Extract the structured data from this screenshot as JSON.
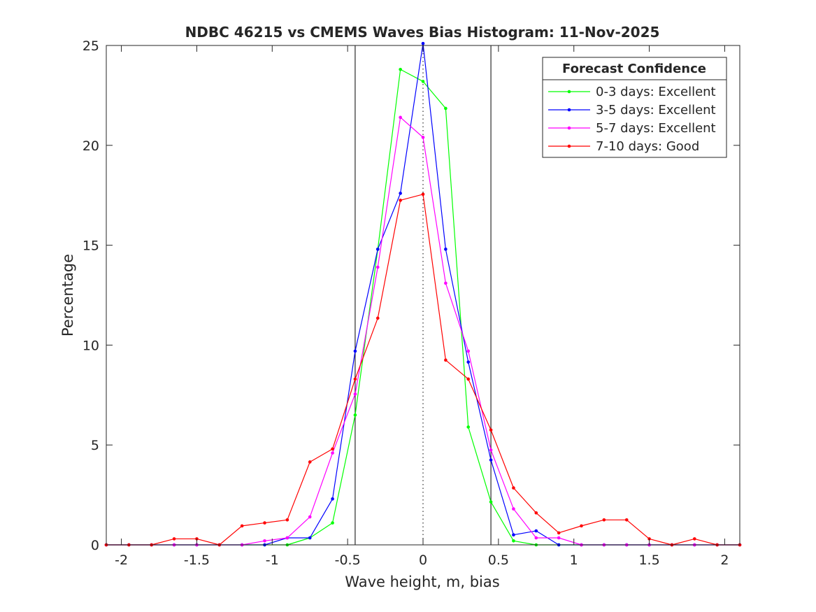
{
  "chart_data": {
    "type": "line",
    "title": "NDBC 46215 vs CMEMS Waves Bias Histogram: 11-Nov-2025",
    "xlabel": "Wave height, m, bias",
    "ylabel": "Percentage",
    "xlim": [
      -2.1,
      2.1
    ],
    "ylim": [
      0,
      25
    ],
    "xticks": [
      -2,
      -1.5,
      -1,
      -0.5,
      0,
      0.5,
      1,
      1.5,
      2
    ],
    "xtick_labels": [
      "-2",
      "-1.5",
      "-1",
      "-0.5",
      "0",
      "0.5",
      "1",
      "1.5",
      "2"
    ],
    "yticks": [
      0,
      5,
      10,
      15,
      20,
      25
    ],
    "ytick_labels": [
      "0",
      "5",
      "10",
      "15",
      "20",
      "25"
    ],
    "grid": false,
    "reference_lines": [
      {
        "x": -0.45,
        "style": "solid",
        "color": "#000000"
      },
      {
        "x": 0.45,
        "style": "solid",
        "color": "#000000"
      },
      {
        "x": 0,
        "style": "dotted",
        "color": "#000000"
      }
    ],
    "legend": {
      "title": "Forecast Confidence",
      "location": "top-right"
    },
    "x": [
      -2.1,
      -1.95,
      -1.8,
      -1.65,
      -1.5,
      -1.35,
      -1.2,
      -1.05,
      -0.9,
      -0.75,
      -0.6,
      -0.45,
      -0.3,
      -0.15,
      0,
      0.15,
      0.3,
      0.45,
      0.6,
      0.75,
      0.9,
      1.05,
      1.2,
      1.35,
      1.5,
      1.65,
      1.8,
      1.95,
      2.1
    ],
    "series": [
      {
        "name": "0-3 days: Excellent",
        "color": "#00ff00",
        "values": [
          0,
          0,
          0,
          0,
          0,
          0,
          0,
          0,
          0,
          0.35,
          1.1,
          6.5,
          14.8,
          23.8,
          23.2,
          21.85,
          5.9,
          2.15,
          0.2,
          0,
          0,
          0,
          0,
          0,
          0,
          0,
          0,
          0,
          0
        ]
      },
      {
        "name": "3-5 days: Excellent",
        "color": "#0000ff",
        "values": [
          0,
          0,
          0,
          0,
          0,
          0,
          0,
          0,
          0.35,
          0.35,
          2.3,
          9.7,
          14.8,
          17.6,
          25.1,
          14.8,
          9.15,
          4.25,
          0.5,
          0.7,
          0,
          0,
          0,
          0,
          0,
          0,
          0,
          0,
          0
        ]
      },
      {
        "name": "5-7 days: Excellent",
        "color": "#ff00ff",
        "values": [
          0,
          0,
          0,
          0,
          0,
          0,
          0,
          0.2,
          0.35,
          1.4,
          4.6,
          7.55,
          13.9,
          21.4,
          20.4,
          13.1,
          9.7,
          4.75,
          1.8,
          0.35,
          0.35,
          0,
          0,
          0,
          0,
          0,
          0,
          0,
          0
        ]
      },
      {
        "name": "7-10 days: Good",
        "color": "#ff0000",
        "values": [
          0,
          0,
          0,
          0.3,
          0.3,
          0,
          0.95,
          1.1,
          1.25,
          4.15,
          4.8,
          8.3,
          11.35,
          17.25,
          17.55,
          9.25,
          8.3,
          5.75,
          2.85,
          1.6,
          0.6,
          0.95,
          1.25,
          1.25,
          0.3,
          0,
          0.3,
          0,
          0
        ]
      }
    ]
  }
}
